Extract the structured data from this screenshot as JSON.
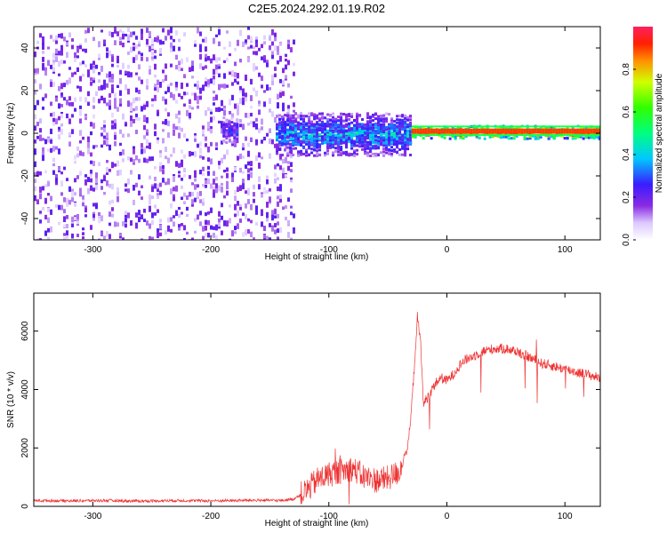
{
  "title": "C2E5.2024.292.01.19.R02",
  "chart_data": [
    {
      "type": "heatmap",
      "xlabel": "Height of straight line (km)",
      "ylabel": "Frequency (Hz)",
      "xlim": [
        -350,
        130
      ],
      "ylim": [
        -50,
        50
      ],
      "xticks": [
        -300,
        -200,
        -100,
        0,
        100
      ],
      "yticks": [
        -40,
        -20,
        0,
        20,
        40
      ],
      "colorbar": {
        "label": "Normalized spectral amplitude",
        "range": [
          0,
          1
        ],
        "ticks": [
          "0.0",
          "0.2",
          "0.4",
          "0.6",
          "0.8"
        ],
        "colormap": "rainbow (white-violet-blue-cyan-green-yellow-red)"
      },
      "regions": [
        {
          "x": [
            -350,
            -130
          ],
          "center_hz": 0,
          "spread_hz": 50,
          "amplitude": 0.1,
          "note": "noise"
        },
        {
          "x": [
            -190,
            -178
          ],
          "center_hz": 2,
          "spread_hz": 6,
          "amplitude": 0.25
        },
        {
          "x": [
            -145,
            -30
          ],
          "center_hz": 0,
          "spread_hz": 10,
          "amplitude": 0.35
        },
        {
          "x": [
            -30,
            130
          ],
          "center_hz": 1,
          "spread_hz": 3,
          "amplitude": 0.9
        }
      ],
      "grid": false
    },
    {
      "type": "line",
      "xlabel": "Height of straight line (km)",
      "ylabel": "SNR (10 * v/v)",
      "xlim": [
        -350,
        130
      ],
      "ylim": [
        0,
        7300
      ],
      "xticks": [
        -300,
        -200,
        -100,
        0,
        100
      ],
      "yticks": [
        0,
        2000,
        4000,
        6000
      ],
      "color": "#ee3333",
      "series": [
        {
          "x": [
            -350,
            -320,
            -290,
            -260,
            -230,
            -200,
            -180,
            -160,
            -140,
            -130,
            -120,
            -110,
            -100,
            -90,
            -80,
            -70,
            -60,
            -50,
            -40,
            -32,
            -28,
            -25,
            -22,
            -20,
            -15,
            -10,
            -5,
            0,
            5,
            10,
            15,
            20,
            25,
            30,
            40,
            50,
            60,
            70,
            80,
            90,
            100,
            110,
            120,
            130
          ],
          "y": [
            200,
            190,
            200,
            180,
            200,
            190,
            200,
            210,
            200,
            250,
            500,
            900,
            1100,
            1200,
            1300,
            1000,
            900,
            950,
            1200,
            2200,
            4500,
            6500,
            5500,
            3500,
            3800,
            4200,
            4400,
            4300,
            4500,
            4800,
            5000,
            5100,
            5200,
            5300,
            5400,
            5400,
            5300,
            5100,
            4900,
            4800,
            4700,
            4600,
            4500,
            4400
          ],
          "noise": 500
        }
      ],
      "grid": false
    }
  ]
}
